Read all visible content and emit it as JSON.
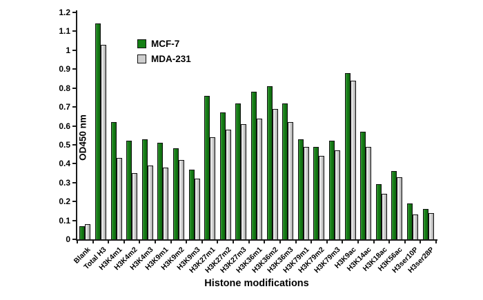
{
  "figure": {
    "y_axis_title": "OD450 nm",
    "x_axis_title": "Histone modifications"
  },
  "legend": {
    "items": [
      {
        "label": "MCF-7",
        "color": "#158015"
      },
      {
        "label": "MDA-231",
        "color": "#cecece"
      }
    ]
  },
  "chart_data": {
    "type": "bar",
    "title": "",
    "xlabel": "Histone modifications",
    "ylabel": "OD450 nm",
    "ylim": [
      0,
      1.2
    ],
    "ytick_step": 0.1,
    "yticks": [
      "0",
      "0.1",
      "0.2",
      "0.3",
      "0.4",
      "0.5",
      "0.6",
      "0.7",
      "0.8",
      "0.9",
      "1",
      "1.1",
      "1.2"
    ],
    "grid": false,
    "legend_position": "top-center-inside",
    "categories": [
      "Blank",
      "Total H3",
      "H3K4m1",
      "H3K4m2",
      "H3K4m3",
      "H3K9m1",
      "H3K9m2",
      "H3K9m3",
      "H3K27m1",
      "H3K27m2",
      "H3K27m3",
      "H3K36m1",
      "H3K36m2",
      "H3K36m3",
      "H3K79m1",
      "H3K79m2",
      "H3K79m3",
      "H3K9ac",
      "H3K14ac",
      "H3K18ac",
      "H3K56ac",
      "H3ser10P",
      "H3ser28P"
    ],
    "series": [
      {
        "name": "MCF-7",
        "color": "#158015",
        "values": [
          0.07,
          1.14,
          0.62,
          0.52,
          0.53,
          0.51,
          0.48,
          0.37,
          0.76,
          0.67,
          0.72,
          0.78,
          0.81,
          0.72,
          0.53,
          0.49,
          0.52,
          0.88,
          0.57,
          0.29,
          0.36,
          0.19,
          0.16
        ]
      },
      {
        "name": "MDA-231",
        "color": "#c6c6c6",
        "values": [
          0.08,
          1.03,
          0.43,
          0.35,
          0.39,
          0.38,
          0.42,
          0.32,
          0.54,
          0.58,
          0.61,
          0.64,
          0.69,
          0.62,
          0.49,
          0.44,
          0.47,
          0.84,
          0.49,
          0.24,
          0.33,
          0.13,
          0.14
        ]
      }
    ]
  }
}
